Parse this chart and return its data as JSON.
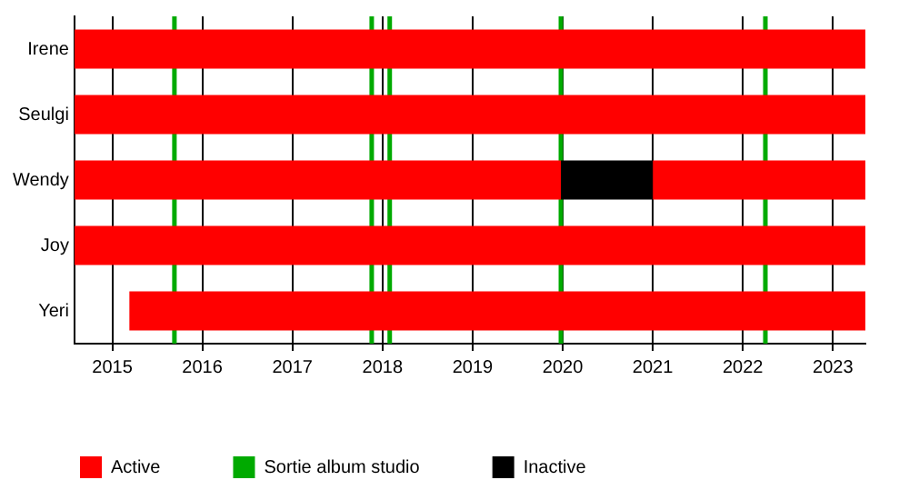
{
  "chart_data": {
    "type": "bar",
    "orientation": "horizontal",
    "categories": [
      "Irene",
      "Seulgi",
      "Wendy",
      "Joy",
      "Yeri"
    ],
    "series": [
      {
        "name": "Active",
        "color": "#ff0000",
        "base": [
          2014.58,
          2014.58,
          2014.58,
          2014.58,
          2015.19
        ],
        "values": [
          8.78,
          8.78,
          5.4,
          8.78,
          8.17
        ]
      },
      {
        "name": "Inactive",
        "color": "#000000",
        "base": [
          null,
          null,
          2019.98,
          null,
          null
        ],
        "values": [
          null,
          null,
          1.02,
          null,
          null
        ]
      },
      {
        "color": "#ff0000",
        "base": [
          null,
          null,
          2021.0,
          null,
          null
        ],
        "values": [
          null,
          null,
          2.36,
          null,
          null
        ]
      }
    ],
    "ref_lines": [
      {
        "axis": "x",
        "value": 2015.69,
        "label": "Sortie album studio",
        "color": "#00aa00"
      },
      {
        "axis": "x",
        "value": 2017.88,
        "color": "#00aa00"
      },
      {
        "axis": "x",
        "value": 2018.08,
        "color": "#00aa00"
      },
      {
        "axis": "x",
        "value": 2019.98,
        "color": "#00aa00"
      },
      {
        "axis": "x",
        "value": 2022.25,
        "color": "#00aa00"
      }
    ],
    "xlim": [
      2014.58,
      2023.36
    ],
    "xticks": [
      2015,
      2016,
      2017,
      2018,
      2019,
      2020,
      2021,
      2022,
      2023
    ],
    "grid": "x",
    "legend": "bottom"
  }
}
